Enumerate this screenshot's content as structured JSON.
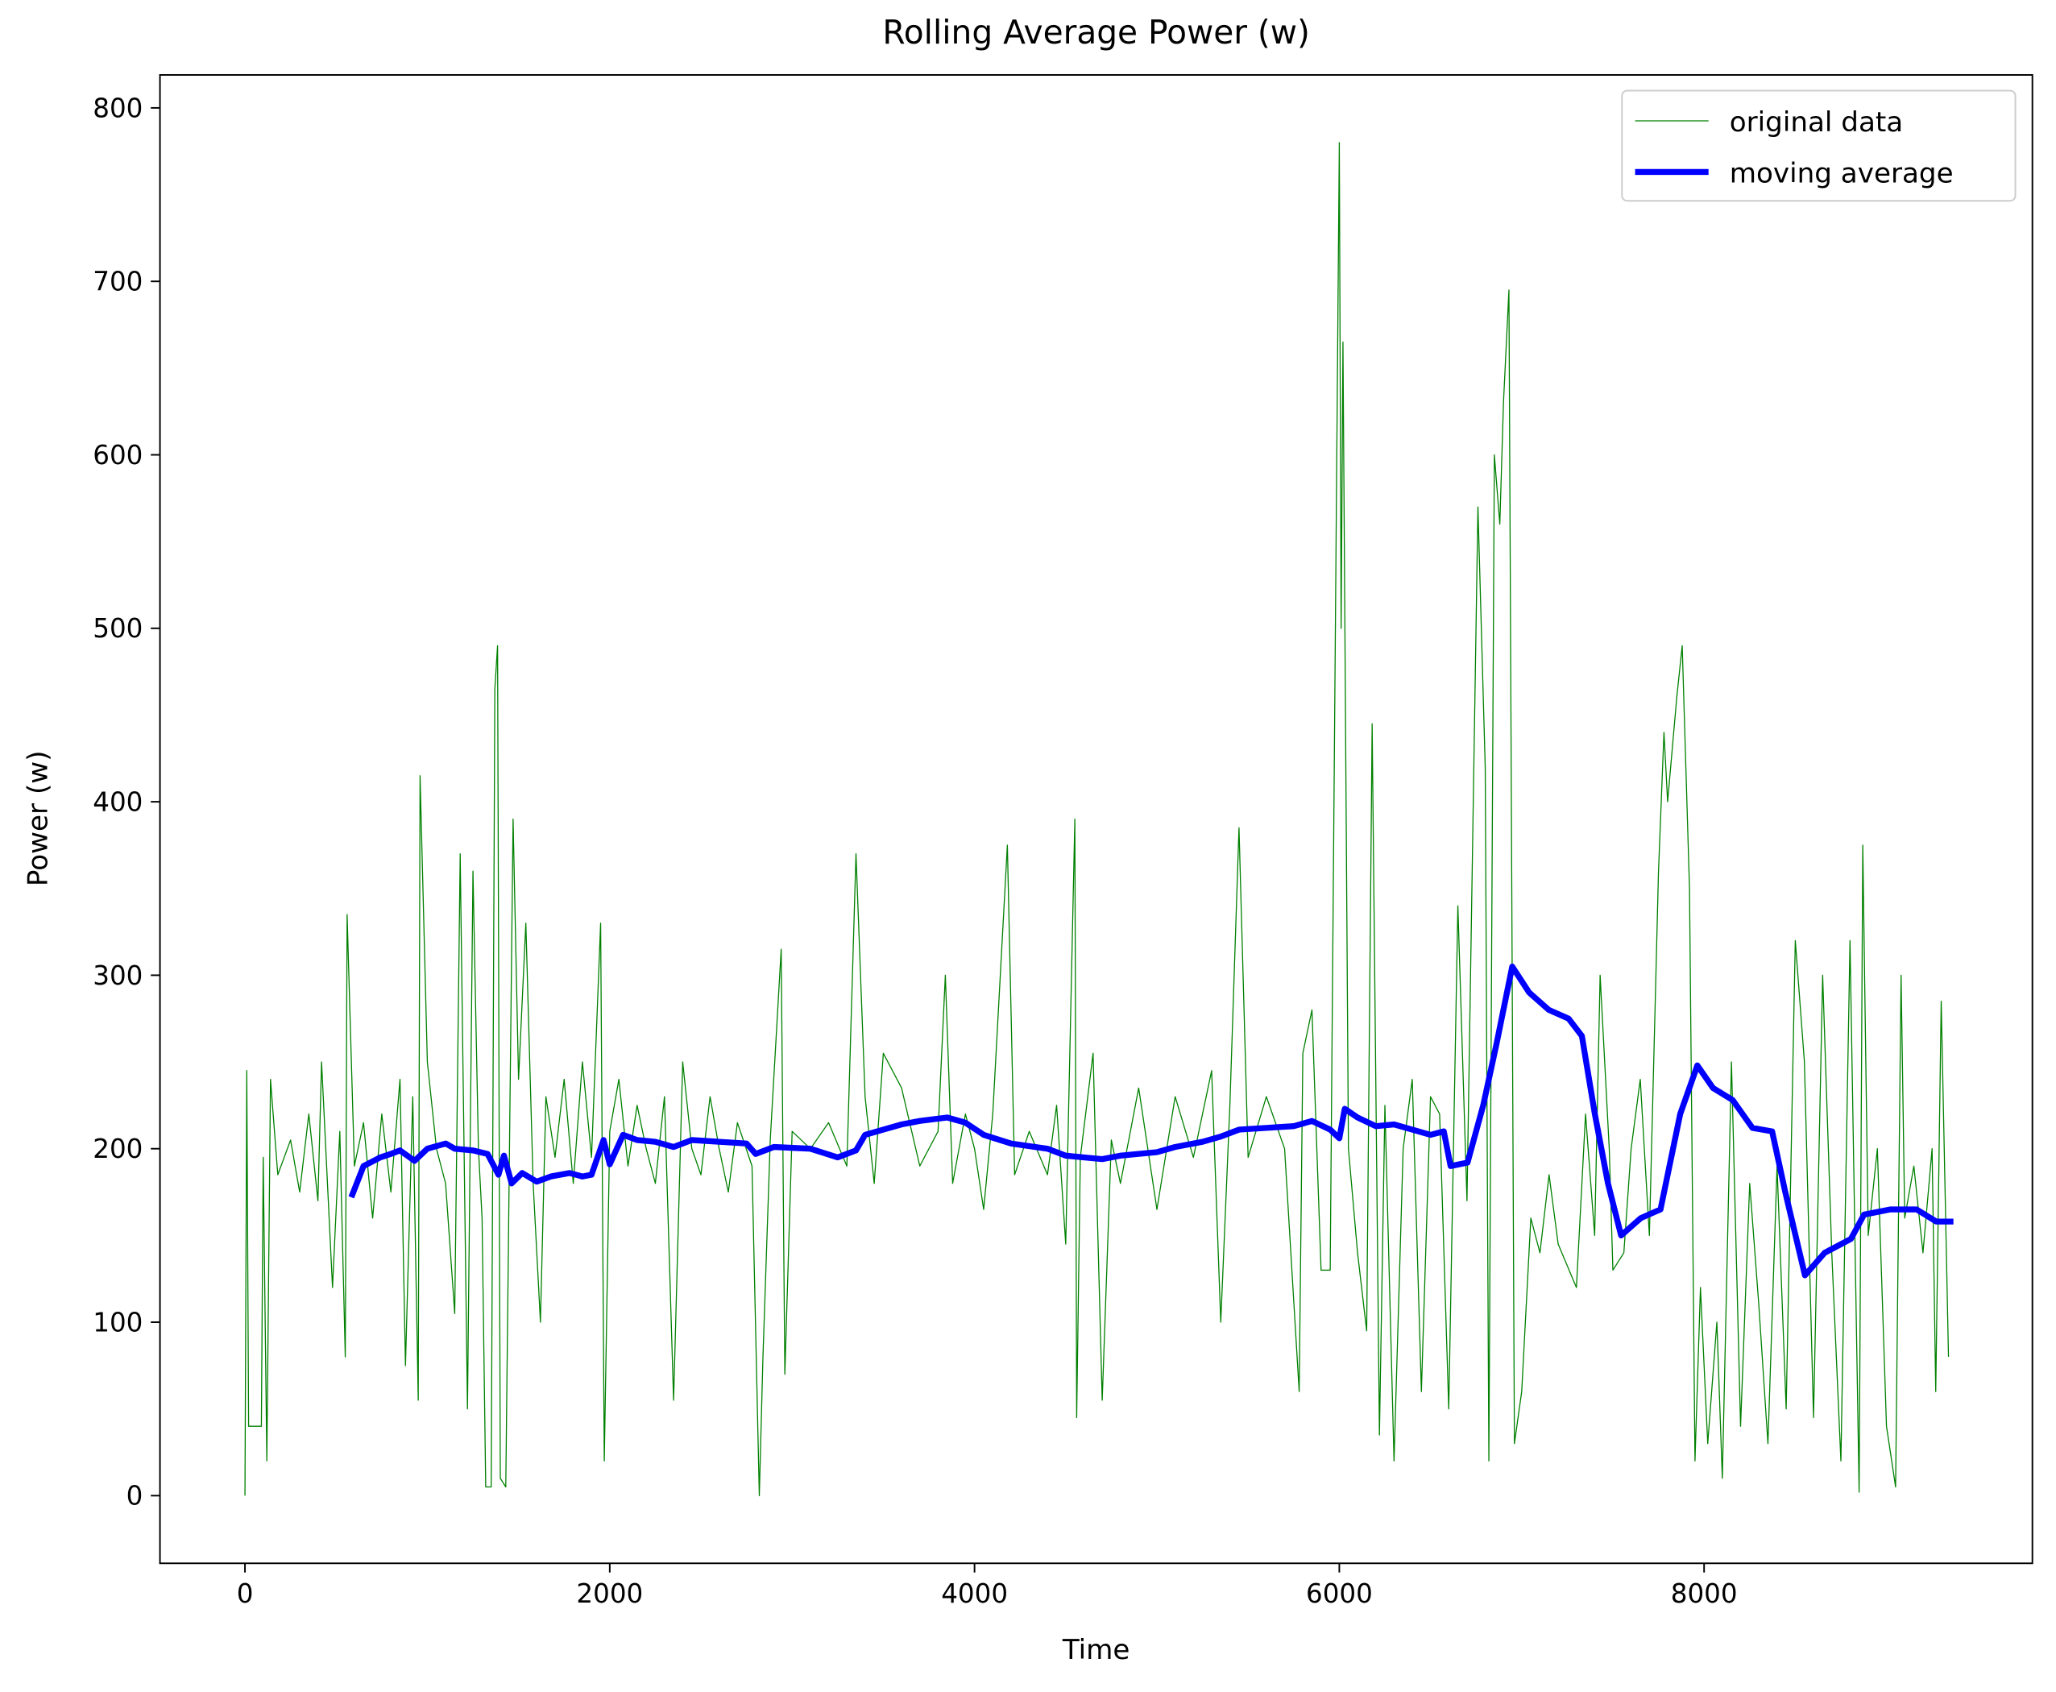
{
  "chart_data": {
    "type": "line",
    "title": "Rolling Average Power (w)",
    "x_label": "Time",
    "y_label": "Power (w)",
    "xlim": [
      -466,
      9800
    ],
    "ylim": [
      -39,
      819
    ],
    "xticks": [
      0,
      2000,
      4000,
      6000,
      8000
    ],
    "yticks": [
      0,
      100,
      200,
      300,
      400,
      500,
      600,
      700,
      800
    ],
    "legend": "upper right",
    "series": [
      {
        "name": "original data",
        "color": "#008000",
        "x": [
          0,
          10,
          20,
          90,
          100,
          120,
          140,
          180,
          250,
          300,
          350,
          400,
          420,
          480,
          520,
          550,
          560,
          600,
          650,
          700,
          750,
          800,
          850,
          880,
          920,
          950,
          960,
          1000,
          1050,
          1100,
          1150,
          1180,
          1220,
          1250,
          1280,
          1300,
          1320,
          1350,
          1370,
          1385,
          1400,
          1430,
          1470,
          1500,
          1540,
          1580,
          1620,
          1650,
          1700,
          1750,
          1800,
          1850,
          1900,
          1950,
          1970,
          2000,
          2050,
          2100,
          2150,
          2200,
          2250,
          2300,
          2350,
          2400,
          2450,
          2500,
          2550,
          2600,
          2650,
          2700,
          2780,
          2820,
          2840,
          2880,
          2940,
          2960,
          3000,
          3100,
          3200,
          3300,
          3350,
          3400,
          3450,
          3500,
          3600,
          3700,
          3800,
          3840,
          3880,
          3950,
          4000,
          4050,
          4100,
          4180,
          4220,
          4300,
          4400,
          4450,
          4500,
          4550,
          4560,
          4580,
          4650,
          4700,
          4750,
          4800,
          4900,
          5000,
          5100,
          5200,
          5300,
          5350,
          5400,
          5450,
          5500,
          5600,
          5700,
          5780,
          5800,
          5850,
          5900,
          5950,
          6000,
          6010,
          6020,
          6050,
          6100,
          6150,
          6180,
          6220,
          6250,
          6300,
          6350,
          6400,
          6450,
          6500,
          6550,
          6600,
          6650,
          6700,
          6760,
          6800,
          6820,
          6850,
          6880,
          6900,
          6930,
          6960,
          7000,
          7050,
          7100,
          7150,
          7200,
          7300,
          7350,
          7400,
          7430,
          7480,
          7500,
          7560,
          7600,
          7650,
          7700,
          7750,
          7780,
          7800,
          7850,
          7880,
          7920,
          7950,
          7980,
          8020,
          8070,
          8100,
          8150,
          8200,
          8250,
          8300,
          8350,
          8400,
          8450,
          8500,
          8550,
          8600,
          8650,
          8700,
          8750,
          8800,
          8850,
          8870,
          8900,
          8950,
          9000,
          9050,
          9080,
          9100,
          9150,
          9200,
          9250,
          9270,
          9300,
          9340
        ],
        "values": [
          0,
          245,
          40,
          40,
          195,
          20,
          240,
          185,
          205,
          175,
          220,
          170,
          250,
          120,
          210,
          80,
          335,
          190,
          215,
          160,
          220,
          175,
          240,
          75,
          230,
          55,
          415,
          250,
          200,
          180,
          105,
          370,
          50,
          360,
          200,
          160,
          5,
          5,
          465,
          490,
          10,
          5,
          390,
          240,
          330,
          180,
          100,
          230,
          195,
          240,
          180,
          250,
          195,
          330,
          20,
          210,
          240,
          190,
          225,
          200,
          180,
          230,
          55,
          250,
          200,
          185,
          230,
          200,
          175,
          215,
          190,
          0,
          80,
          205,
          315,
          70,
          210,
          200,
          215,
          190,
          370,
          230,
          180,
          255,
          235,
          190,
          210,
          300,
          180,
          220,
          200,
          165,
          220,
          375,
          185,
          210,
          185,
          225,
          145,
          390,
          45,
          195,
          255,
          55,
          205,
          180,
          235,
          165,
          230,
          195,
          245,
          100,
          225,
          385,
          195,
          230,
          200,
          60,
          255,
          280,
          130,
          130,
          780,
          500,
          665,
          200,
          140,
          95,
          445,
          35,
          225,
          20,
          200,
          240,
          60,
          230,
          220,
          50,
          340,
          170,
          570,
          420,
          20,
          600,
          560,
          630,
          695,
          30,
          60,
          160,
          140,
          185,
          145,
          120,
          220,
          150,
          300,
          200,
          130,
          140,
          200,
          240,
          150,
          360,
          440,
          400,
          460,
          490,
          350,
          20,
          120,
          30,
          100,
          10,
          250,
          40,
          180,
          110,
          30,
          190,
          50,
          320,
          250,
          45,
          300,
          140,
          20,
          320,
          2,
          375,
          150,
          200,
          40,
          5,
          300,
          160,
          190,
          140,
          200,
          60,
          285,
          80
        ]
      },
      {
        "name": "moving average",
        "color": "#0000ff",
        "x": [
          583,
          650,
          742,
          800,
          850,
          930,
          1000,
          1101,
          1150,
          1250,
          1330,
          1390,
          1420,
          1462,
          1520,
          1600,
          1677,
          1780,
          1850,
          1900,
          1966,
          2000,
          2073,
          2150,
          2250,
          2350,
          2450,
          2600,
          2750,
          2800,
          2900,
          3100,
          3250,
          3350,
          3400,
          3500,
          3600,
          3700,
          3850,
          3950,
          4050,
          4200,
          4400,
          4500,
          4600,
          4700,
          4800,
          4900,
          5000,
          5100,
          5250,
          5350,
          5450,
          5600,
          5750,
          5850,
          5950,
          6000,
          6030,
          6100,
          6200,
          6300,
          6400,
          6500,
          6573,
          6610,
          6703,
          6789,
          6861,
          6948,
          7041,
          7149,
          7257,
          7330,
          7401,
          7473,
          7545,
          7653,
          7761,
          7869,
          7963,
          8049,
          8157,
          8265,
          8373,
          8445,
          8553,
          8661,
          8805,
          8877,
          9021,
          9165,
          9273,
          9367
        ],
        "values": [
          172,
          190,
          195,
          197,
          199,
          193,
          200,
          203,
          200,
          199,
          197,
          185,
          196,
          180,
          186,
          181,
          184,
          186,
          184,
          185,
          205,
          191,
          208,
          205,
          204,
          201,
          205,
          204,
          203,
          197,
          201,
          200,
          195,
          199,
          208,
          211,
          214,
          216,
          218,
          215,
          208,
          203,
          200,
          196,
          195,
          194,
          196,
          197,
          198,
          201,
          204,
          207,
          211,
          212,
          213,
          216,
          211,
          206,
          223,
          218,
          213,
          214,
          211,
          208,
          210,
          190,
          192,
          225,
          260,
          305,
          290,
          280,
          275,
          265,
          220,
          180,
          150,
          160,
          165,
          220,
          248,
          235,
          228,
          212,
          210,
          175,
          127,
          140,
          148,
          162,
          165,
          165,
          158,
          158
        ]
      }
    ]
  }
}
